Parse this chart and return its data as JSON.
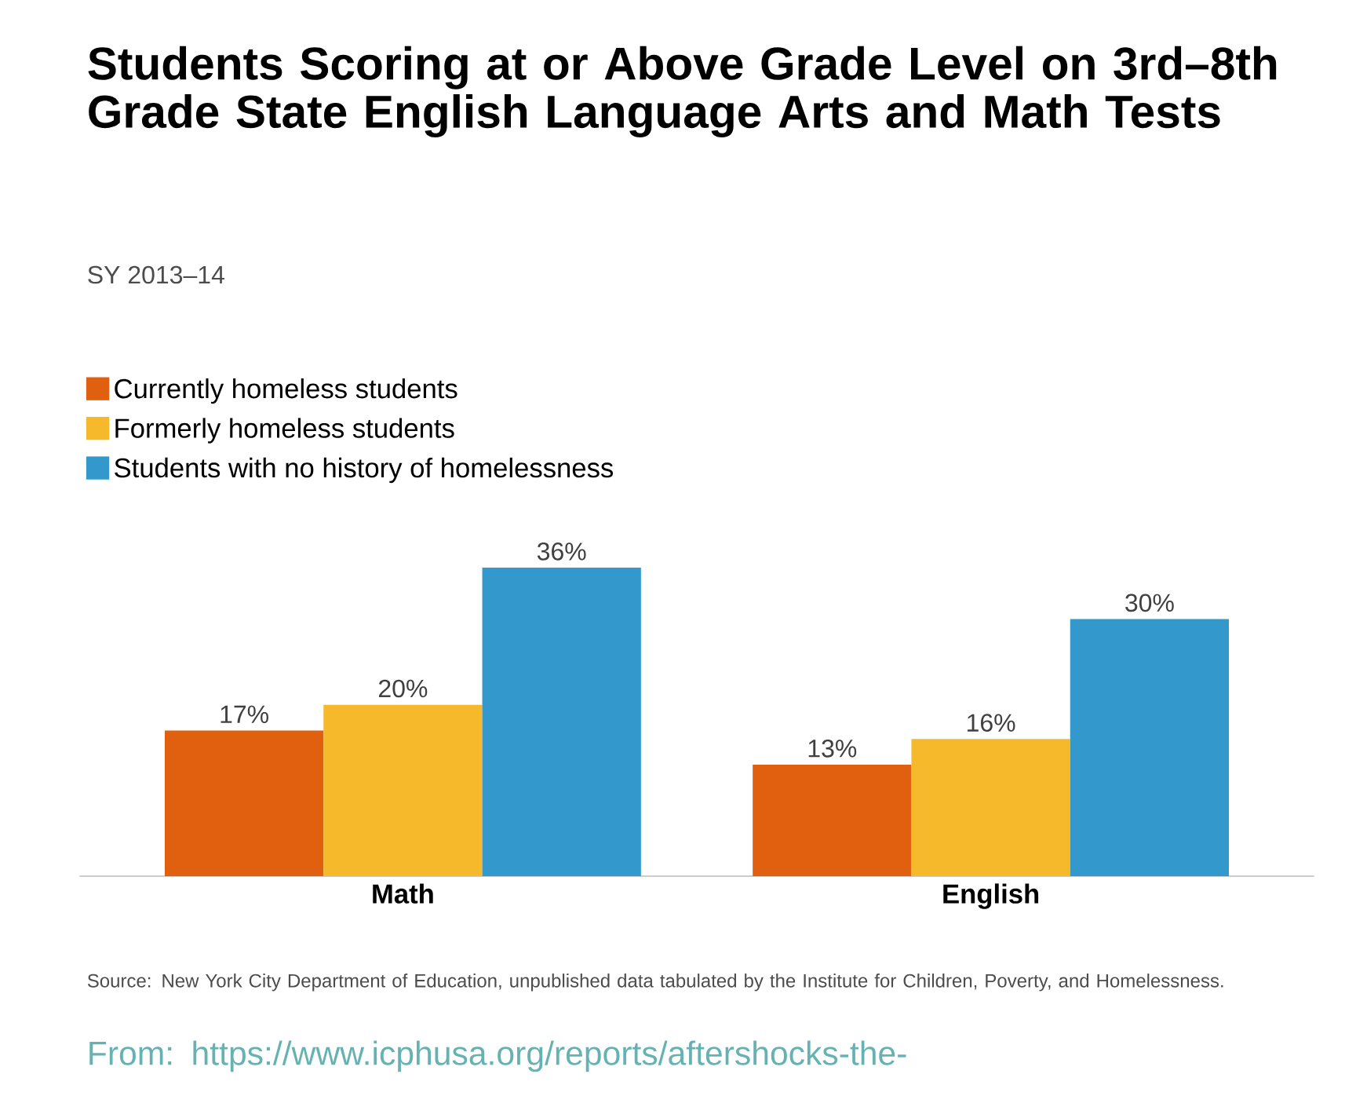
{
  "chart_data": {
    "type": "bar",
    "title": "Students Scoring at or Above Grade Level on 3rd–8th Grade State English Language Arts and Math Tests",
    "subtitle": "SY 2013–14",
    "categories": [
      "Math",
      "English"
    ],
    "series": [
      {
        "name": "Currently homeless students",
        "color": "#e0600f",
        "values": [
          17,
          13
        ],
        "value_labels": [
          "17%",
          "13%"
        ]
      },
      {
        "name": "Formerly homeless students",
        "color": "#f6b92b",
        "values": [
          20,
          16
        ],
        "value_labels": [
          "20%",
          "16%"
        ]
      },
      {
        "name": "Students with no history of homelessness",
        "color": "#3399cc",
        "values": [
          36,
          30
        ],
        "value_labels": [
          "36%",
          "30%"
        ]
      }
    ],
    "legend": "top left",
    "annotations": [
      "Source: New York City Department of Education, unpublished data tabulated by the Institute for Children, Poverty, and Homelessness.",
      "From: https://www.icphusa.org/reports/aftershocks-the-"
    ]
  }
}
